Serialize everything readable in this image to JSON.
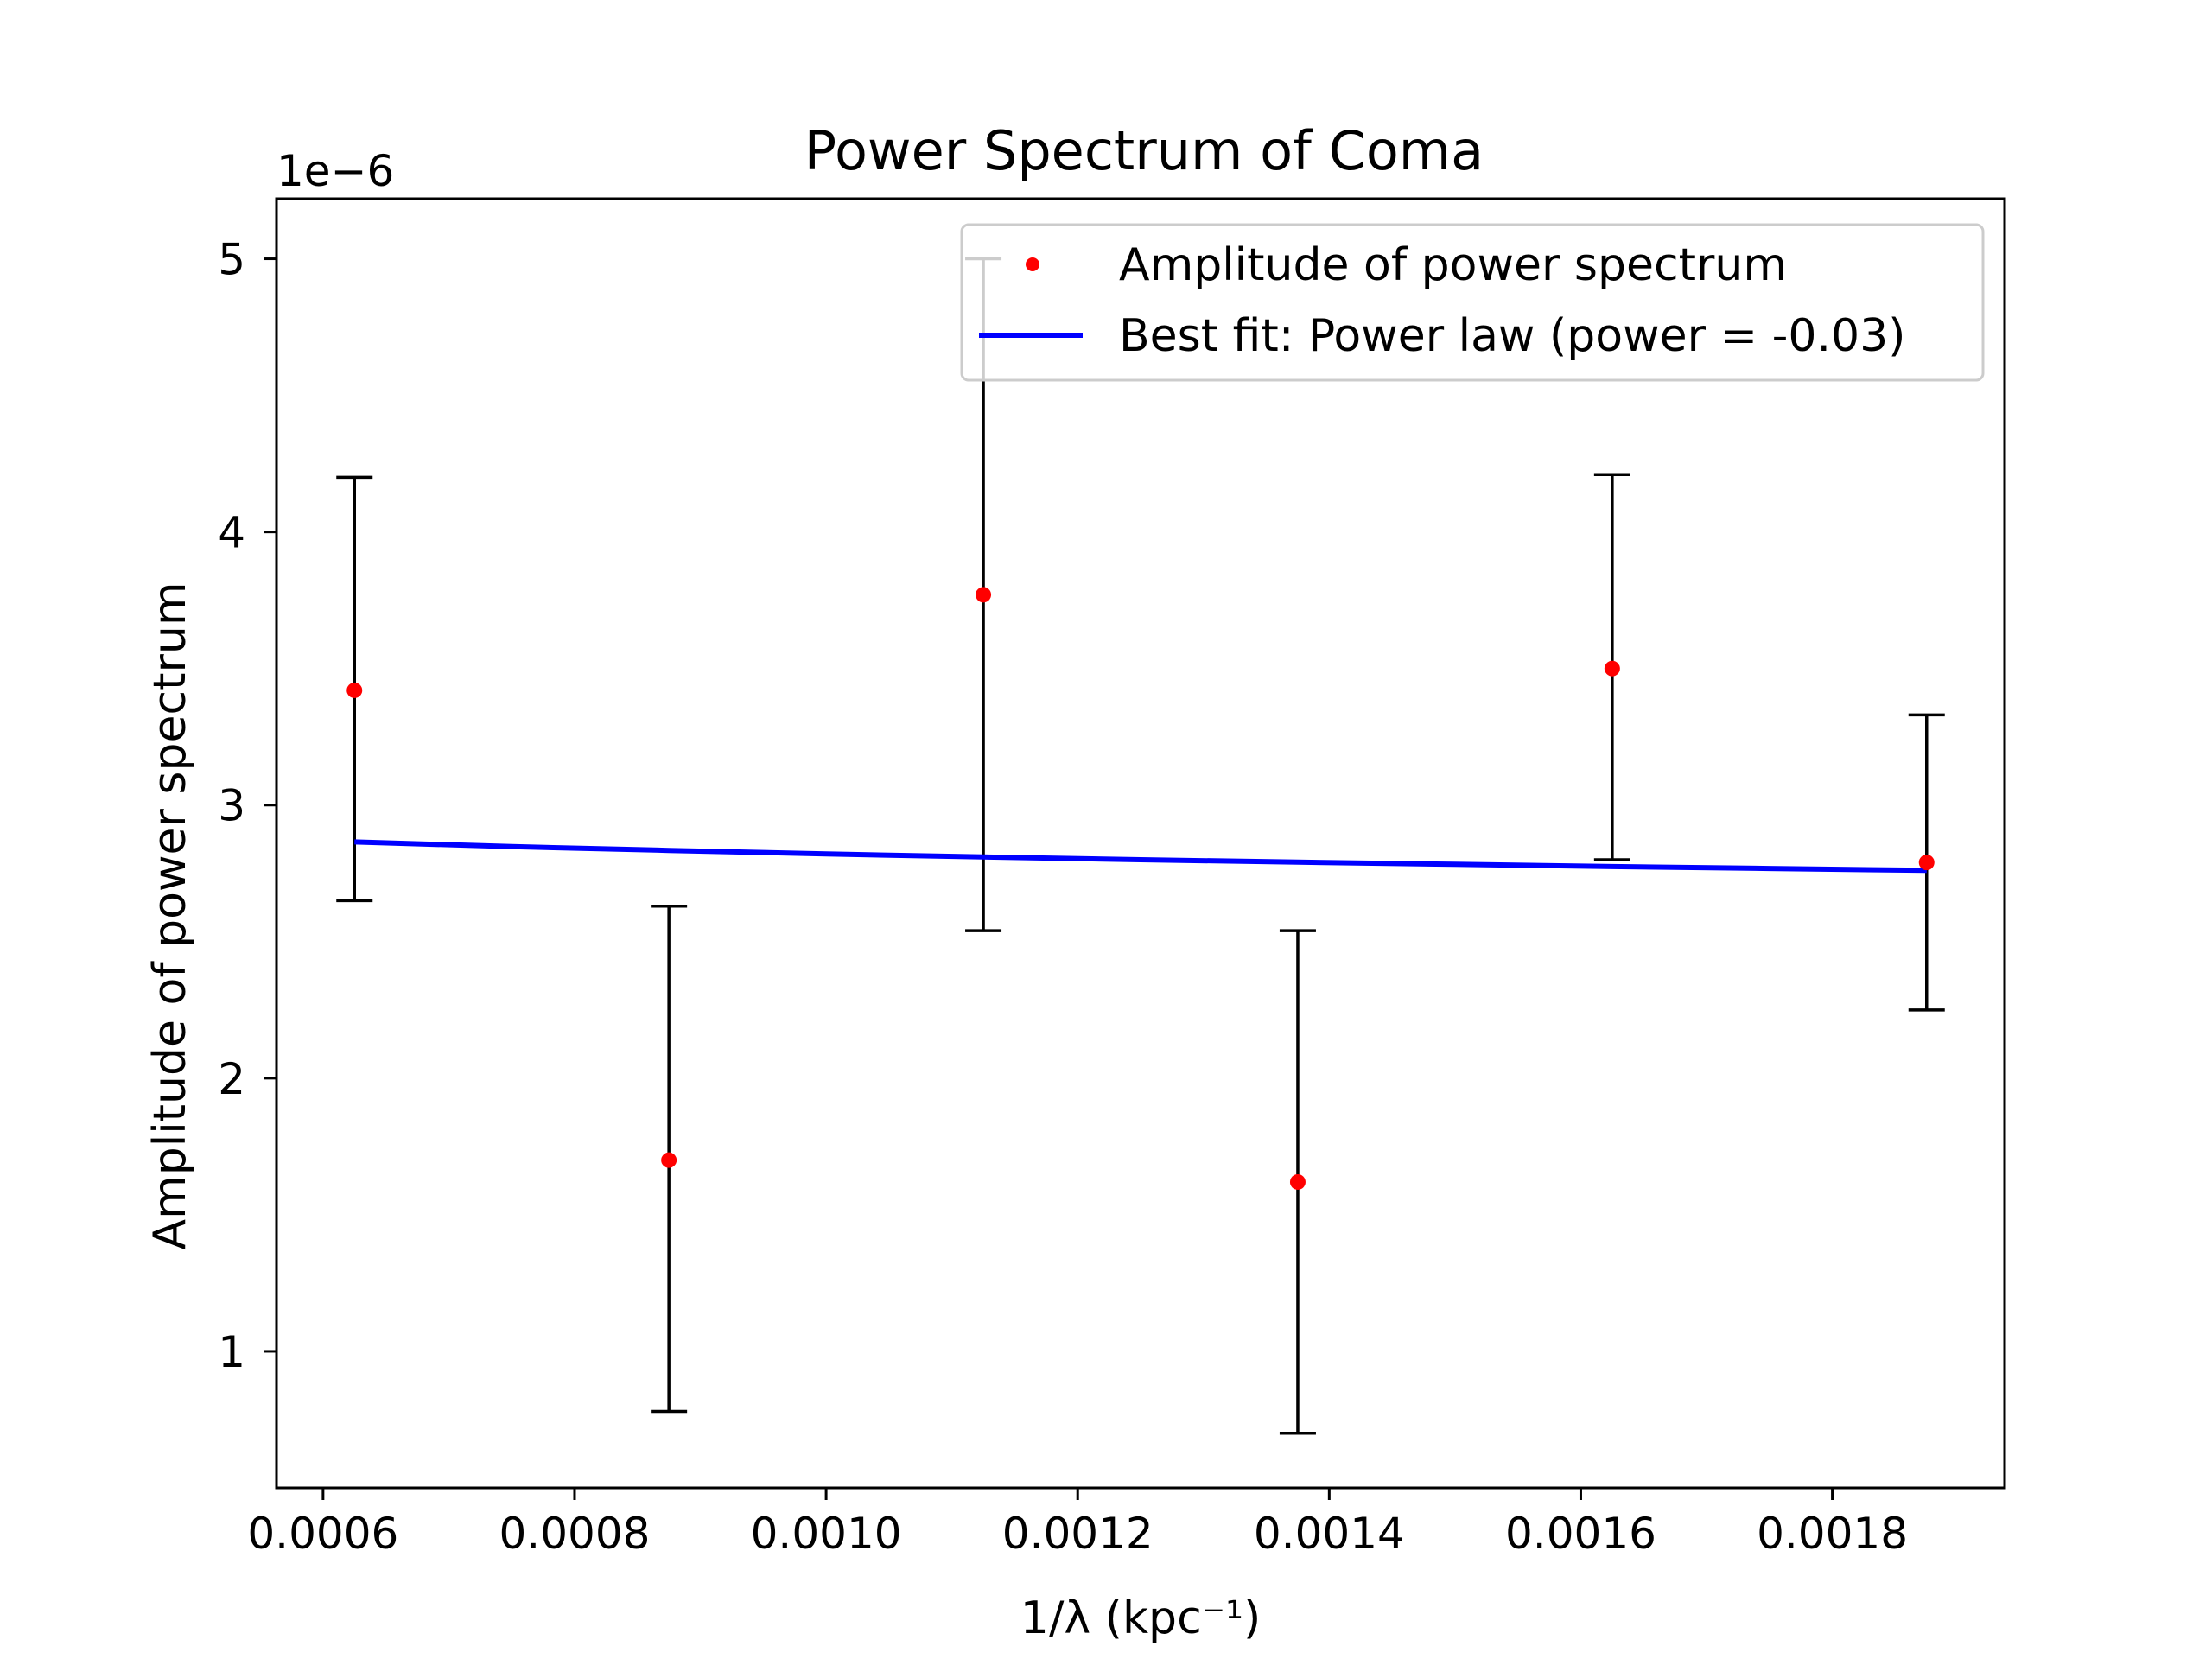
{
  "chart_data": {
    "type": "scatter",
    "title": "Power Spectrum of Coma",
    "xlabel": "1/λ (kpc⁻¹)",
    "ylabel": "Amplitude of power spectrum",
    "y_offset_label": "1e−6",
    "y_scale_factor": 1e-06,
    "xlim": [
      0.000563,
      0.001937
    ],
    "ylim": [
      0.5,
      5.22
    ],
    "x_ticks": [
      0.0006,
      0.0008,
      0.001,
      0.0012,
      0.0014,
      0.0016,
      0.0018
    ],
    "x_tick_labels": [
      "0.0006",
      "0.0008",
      "0.0010",
      "0.0012",
      "0.0014",
      "0.0016",
      "0.0018"
    ],
    "y_ticks": [
      1,
      2,
      3,
      4,
      5
    ],
    "y_tick_labels": [
      "1",
      "2",
      "3",
      "4",
      "5"
    ],
    "grid": false,
    "legend_position": "top-right",
    "series": [
      {
        "name": "Amplitude of power spectrum",
        "kind": "errorbar-points",
        "color": "#ff0000",
        "errorbar_color": "#000000",
        "x": [
          0.000625,
          0.000875,
          0.001125,
          0.001375,
          0.001625,
          0.001875
        ],
        "y": [
          3.42,
          1.7,
          3.77,
          1.62,
          3.5,
          2.79
        ],
        "y_low": [
          2.65,
          0.78,
          2.54,
          0.7,
          2.8,
          2.25
        ],
        "y_high": [
          4.2,
          2.63,
          5.0,
          2.54,
          4.21,
          3.33
        ]
      },
      {
        "name": "Best fit: Power law (power = -0.03)",
        "kind": "line",
        "color": "#0000ff",
        "x": [
          0.000625,
          0.00075,
          0.000875,
          0.001,
          0.001125,
          0.00125,
          0.001375,
          0.0015,
          0.001625,
          0.00175,
          0.001875
        ],
        "y": [
          2.865,
          2.848,
          2.834,
          2.821,
          2.81,
          2.8,
          2.791,
          2.783,
          2.775,
          2.768,
          2.761
        ]
      }
    ]
  }
}
